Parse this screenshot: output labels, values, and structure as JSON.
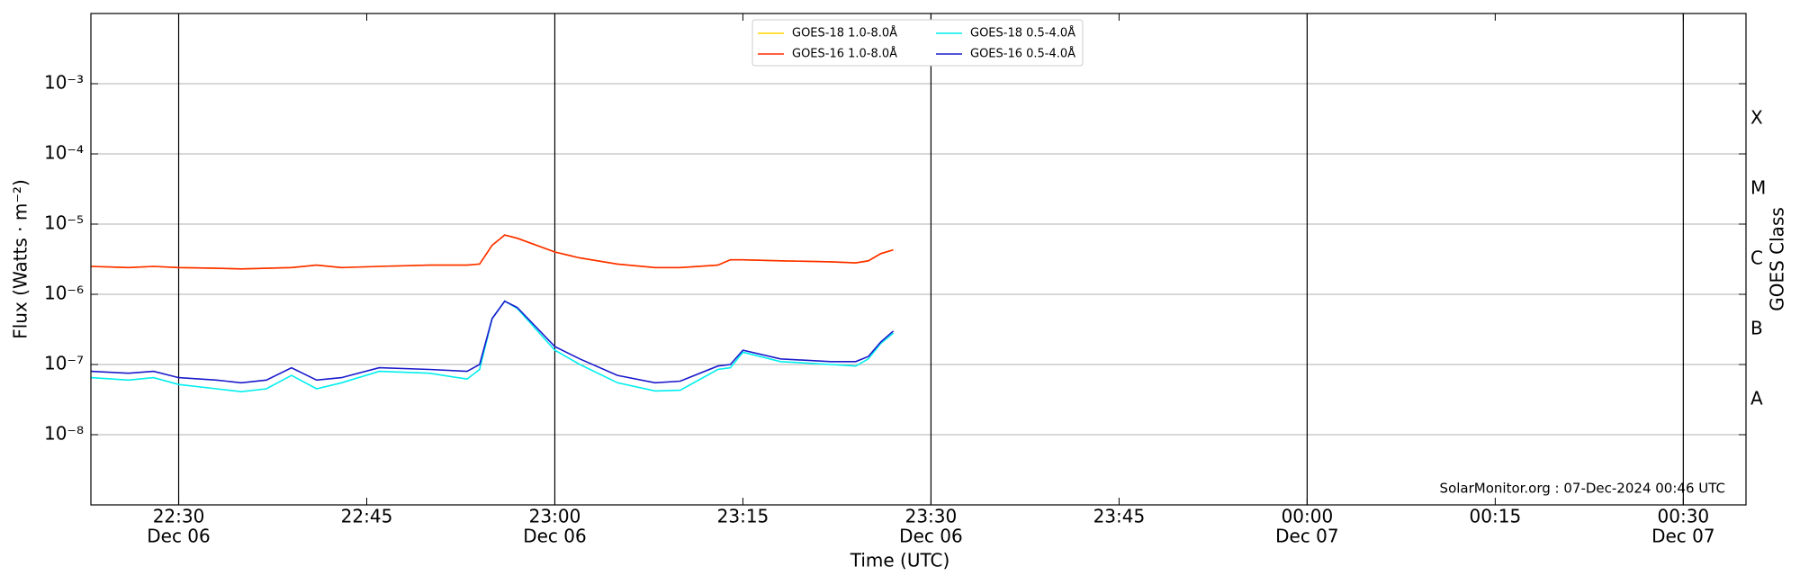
{
  "chart_data": {
    "type": "line",
    "ylabel": "Flux (Watts · m⁻²)",
    "xlabel": "Time (UTC)",
    "y2label": "GOES Class",
    "annotation": "SolarMonitor.org : 07-Dec-2024 00:46 UTC",
    "log_scale": true,
    "grid": true,
    "legend": "top",
    "x": [
      "Dec 06 22:23",
      "Dec 06 22:26",
      "Dec 06 22:28",
      "Dec 06 22:30",
      "Dec 06 22:33",
      "Dec 06 22:35",
      "Dec 06 22:37",
      "Dec 06 22:39",
      "Dec 06 22:41",
      "Dec 06 22:43",
      "Dec 06 22:46",
      "Dec 06 22:50",
      "Dec 06 22:53",
      "Dec 06 22:54",
      "Dec 06 22:55",
      "Dec 06 22:56",
      "Dec 06 22:57",
      "Dec 06 23:00",
      "Dec 06 23:02",
      "Dec 06 23:05",
      "Dec 06 23:08",
      "Dec 06 23:10",
      "Dec 06 23:13",
      "Dec 06 23:14",
      "Dec 06 23:15",
      "Dec 06 23:18",
      "Dec 06 23:22",
      "Dec 06 23:24",
      "Dec 06 23:25",
      "Dec 06 23:26",
      "Dec 06 23:27"
    ],
    "series": [
      {
        "name": "GOES-18 1.0-8.0Å",
        "color": "#ffd700",
        "values": [
          2.5e-06,
          2.4e-06,
          2.5e-06,
          2.4e-06,
          2.35e-06,
          2.3e-06,
          2.35e-06,
          2.4e-06,
          2.6e-06,
          2.4e-06,
          2.5e-06,
          2.6e-06,
          2.6e-06,
          2.7e-06,
          5e-06,
          7e-06,
          6.3e-06,
          4e-06,
          3.3e-06,
          2.7e-06,
          2.4e-06,
          2.4e-06,
          2.6e-06,
          3.1e-06,
          3.1e-06,
          3e-06,
          2.9e-06,
          2.8e-06,
          3e-06,
          3.8e-06,
          4.3e-06
        ]
      },
      {
        "name": "GOES-16 1.0-8.0Å",
        "color": "#ff2a00",
        "values": [
          2.5e-06,
          2.4e-06,
          2.5e-06,
          2.4e-06,
          2.35e-06,
          2.3e-06,
          2.35e-06,
          2.4e-06,
          2.6e-06,
          2.4e-06,
          2.5e-06,
          2.6e-06,
          2.6e-06,
          2.7e-06,
          5e-06,
          7e-06,
          6.3e-06,
          4e-06,
          3.3e-06,
          2.7e-06,
          2.4e-06,
          2.4e-06,
          2.6e-06,
          3.1e-06,
          3.1e-06,
          3e-06,
          2.9e-06,
          2.8e-06,
          3e-06,
          3.8e-06,
          4.3e-06
        ]
      },
      {
        "name": "GOES-18 0.5-4.0Å",
        "color": "#00eeee",
        "values": [
          6.5e-08,
          6e-08,
          6.5e-08,
          5.2e-08,
          4.5e-08,
          4.1e-08,
          4.5e-08,
          7e-08,
          4.5e-08,
          5.5e-08,
          8e-08,
          7.5e-08,
          6.2e-08,
          8.5e-08,
          4.5e-07,
          8e-07,
          6.3e-07,
          1.6e-07,
          1e-07,
          5.5e-08,
          4.2e-08,
          4.3e-08,
          8.5e-08,
          9e-08,
          1.5e-07,
          1.1e-07,
          1e-07,
          9.5e-08,
          1.2e-07,
          2e-07,
          2.8e-07
        ]
      },
      {
        "name": "GOES-16 0.5-4.0Å",
        "color": "#1a1acc",
        "values": [
          8e-08,
          7.5e-08,
          8e-08,
          6.5e-08,
          6e-08,
          5.5e-08,
          6e-08,
          9e-08,
          6e-08,
          6.5e-08,
          9e-08,
          8.5e-08,
          8e-08,
          1e-07,
          4.5e-07,
          8e-07,
          6.5e-07,
          1.8e-07,
          1.2e-07,
          7e-08,
          5.5e-08,
          5.8e-08,
          9.5e-08,
          1e-07,
          1.6e-07,
          1.2e-07,
          1.1e-07,
          1.1e-07,
          1.3e-07,
          2.1e-07,
          3e-07
        ]
      }
    ],
    "xlim": [
      "Dec 06 22:23",
      "Dec 07 00:35"
    ],
    "xticks": [
      {
        "value": "Dec 06 22:30",
        "label": "22:30",
        "date": "Dec 06"
      },
      {
        "value": "Dec 06 22:45",
        "label": "22:45"
      },
      {
        "value": "Dec 06 23:00",
        "label": "23:00",
        "date": "Dec 06"
      },
      {
        "value": "Dec 06 23:15",
        "label": "23:15"
      },
      {
        "value": "Dec 06 23:30",
        "label": "23:30",
        "date": "Dec 06"
      },
      {
        "value": "Dec 06 23:45",
        "label": "23:45"
      },
      {
        "value": "Dec 07 00:00",
        "label": "00:00",
        "date": "Dec 07"
      },
      {
        "value": "Dec 07 00:15",
        "label": "00:15"
      },
      {
        "value": "Dec 07 00:30",
        "label": "00:30",
        "date": "Dec 07"
      }
    ],
    "ylim": [
      1e-09,
      0.01
    ],
    "yticks": [
      {
        "value": 1e-08,
        "label": "10⁻⁸"
      },
      {
        "value": 1e-07,
        "label": "10⁻⁷"
      },
      {
        "value": 1e-06,
        "label": "10⁻⁶"
      },
      {
        "value": 1e-05,
        "label": "10⁻⁵"
      },
      {
        "value": 0.0001,
        "label": "10⁻⁴"
      },
      {
        "value": 0.001,
        "label": "10⁻³"
      }
    ],
    "y2lim": [
      1e-09,
      0.01
    ],
    "y2ticks": [
      {
        "value": 3.16e-08,
        "label": "A"
      },
      {
        "value": 3.16e-07,
        "label": "B"
      },
      {
        "value": 3.16e-06,
        "label": "C"
      },
      {
        "value": 3.16e-05,
        "label": "M"
      },
      {
        "value": 0.000316,
        "label": "X"
      }
    ]
  }
}
